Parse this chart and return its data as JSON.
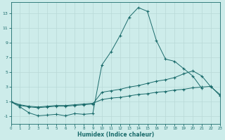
{
  "xlabel": "Humidex (Indice chaleur)",
  "background_color": "#cdecea",
  "grid_color": "#b8d8d6",
  "line_color": "#1a6b6b",
  "x_values": [
    0,
    1,
    2,
    3,
    4,
    5,
    6,
    7,
    8,
    9,
    10,
    11,
    12,
    13,
    14,
    15,
    16,
    17,
    18,
    19,
    20,
    21,
    22,
    23
  ],
  "series1": [
    1.0,
    0.3,
    -0.5,
    -0.9,
    -0.8,
    -0.7,
    -0.9,
    -0.6,
    -0.7,
    -0.6,
    6.0,
    7.8,
    10.0,
    12.5,
    13.8,
    13.3,
    9.3,
    6.8,
    6.5,
    5.5,
    4.5,
    2.8,
    null,
    null
  ],
  "series2": [
    1.0,
    0.5,
    0.3,
    0.2,
    0.3,
    0.4,
    0.4,
    0.5,
    0.6,
    0.7,
    2.3,
    2.5,
    2.7,
    3.0,
    3.2,
    3.5,
    3.8,
    4.0,
    4.3,
    4.8,
    5.2,
    4.5,
    3.0,
    2.0
  ],
  "series3": [
    1.0,
    0.6,
    0.4,
    0.3,
    0.4,
    0.5,
    0.5,
    0.6,
    0.7,
    0.8,
    1.3,
    1.5,
    1.6,
    1.8,
    2.0,
    2.1,
    2.3,
    2.4,
    2.6,
    2.7,
    2.9,
    3.0,
    3.1,
    1.8
  ],
  "ylim": [
    -2,
    14.5
  ],
  "xlim": [
    0,
    23
  ],
  "yticks": [
    -1,
    1,
    3,
    5,
    7,
    9,
    11,
    13
  ],
  "xticks": [
    0,
    1,
    2,
    3,
    4,
    5,
    6,
    7,
    8,
    9,
    10,
    11,
    12,
    13,
    14,
    15,
    16,
    17,
    18,
    19,
    20,
    21,
    22,
    23
  ]
}
